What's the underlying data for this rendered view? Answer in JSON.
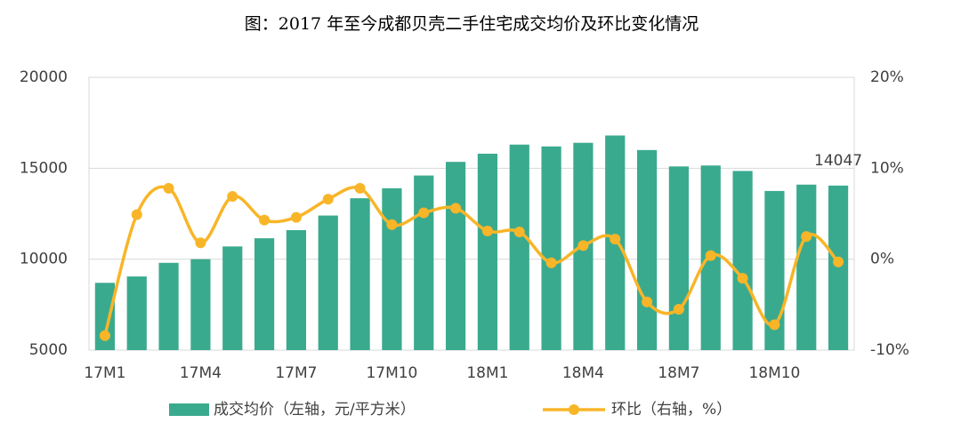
{
  "chart_data": {
    "type": "bar-line",
    "title": "图：2017 年至今成都贝壳二手住宅成交均价及环比变化情况",
    "categories": [
      "17M1",
      null,
      null,
      "17M4",
      null,
      null,
      "17M7",
      null,
      null,
      "17M10",
      null,
      null,
      "18M1",
      null,
      null,
      "18M4",
      null,
      null,
      "18M7",
      null,
      null,
      "18M10",
      null,
      null
    ],
    "series": [
      {
        "name": "成交均价（左轴，元/平方米）",
        "color": "#3aaa8e",
        "type": "bar",
        "values": [
          8700,
          9050,
          9800,
          10000,
          10700,
          11150,
          11600,
          12400,
          13350,
          13900,
          14600,
          15350,
          15800,
          16300,
          16200,
          16400,
          16800,
          16000,
          15100,
          15150,
          14850,
          13750,
          14100,
          14047
        ],
        "value_labels": [
          null,
          null,
          null,
          null,
          null,
          null,
          null,
          null,
          null,
          null,
          null,
          null,
          null,
          null,
          null,
          null,
          null,
          null,
          null,
          null,
          null,
          null,
          null,
          "14047"
        ]
      },
      {
        "name": "环比（右轴，%）",
        "color": "#f8b528",
        "type": "line",
        "axis": "y2",
        "values": [
          -8.4,
          4.9,
          7.8,
          1.8,
          6.9,
          4.3,
          4.6,
          6.6,
          7.8,
          3.8,
          5.1,
          5.6,
          3.1,
          3.0,
          -0.4,
          1.5,
          2.2,
          -4.7,
          -5.5,
          0.4,
          -2.1,
          -7.2,
          2.5,
          -0.3
        ]
      }
    ],
    "ylim": [
      5000,
      20000
    ],
    "yticks": [
      5000,
      10000,
      15000,
      20000
    ],
    "y2lim": [
      -10,
      20
    ],
    "y2ticks": [
      {
        "value": -10,
        "label": "-10%"
      },
      {
        "value": 0,
        "label": "0%"
      },
      {
        "value": 10,
        "label": "10%"
      },
      {
        "value": 20,
        "label": "20%"
      }
    ],
    "grid": true
  }
}
